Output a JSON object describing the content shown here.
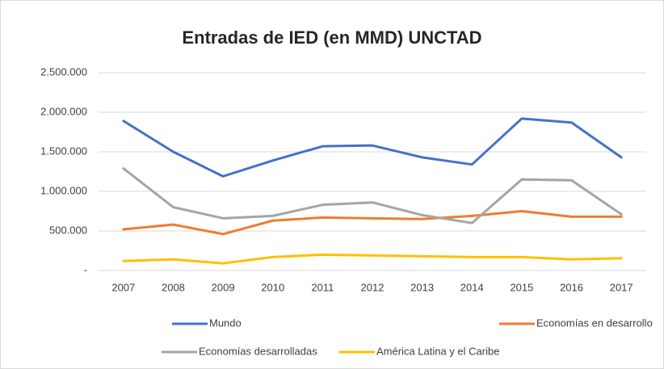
{
  "chart_data": {
    "type": "line",
    "title": "Entradas de IED (en MMD) UNCTAD",
    "categories": [
      "2007",
      "2008",
      "2009",
      "2010",
      "2011",
      "2012",
      "2013",
      "2014",
      "2015",
      "2016",
      "2017"
    ],
    "series": [
      {
        "name": "Mundo",
        "color": "#4472c4",
        "values": [
          1890000,
          1500000,
          1190000,
          1390000,
          1570000,
          1580000,
          1430000,
          1340000,
          1920000,
          1870000,
          1430000
        ]
      },
      {
        "name": "Economías en desarrollo",
        "color": "#ed7d31",
        "values": [
          520000,
          580000,
          460000,
          630000,
          670000,
          660000,
          650000,
          690000,
          750000,
          680000,
          680000
        ]
      },
      {
        "name": "Economías desarrolladas",
        "color": "#a5a5a5",
        "values": [
          1290000,
          800000,
          660000,
          690000,
          830000,
          860000,
          700000,
          600000,
          1150000,
          1140000,
          710000
        ]
      },
      {
        "name": "América Latina y el Caribe",
        "color": "#ffc000",
        "values": [
          120000,
          140000,
          90000,
          170000,
          200000,
          190000,
          180000,
          170000,
          170000,
          140000,
          155000
        ]
      }
    ],
    "ylim": [
      0,
      2500000
    ],
    "yticks": [
      {
        "value": 0,
        "label": "-"
      },
      {
        "value": 500000,
        "label": "500.000"
      },
      {
        "value": 1000000,
        "label": "1.000.000"
      },
      {
        "value": 1500000,
        "label": "1.500.000"
      },
      {
        "value": 2000000,
        "label": "2.000.000"
      },
      {
        "value": 2500000,
        "label": "2.500.000"
      }
    ],
    "grid": true,
    "legend": "bottom"
  }
}
